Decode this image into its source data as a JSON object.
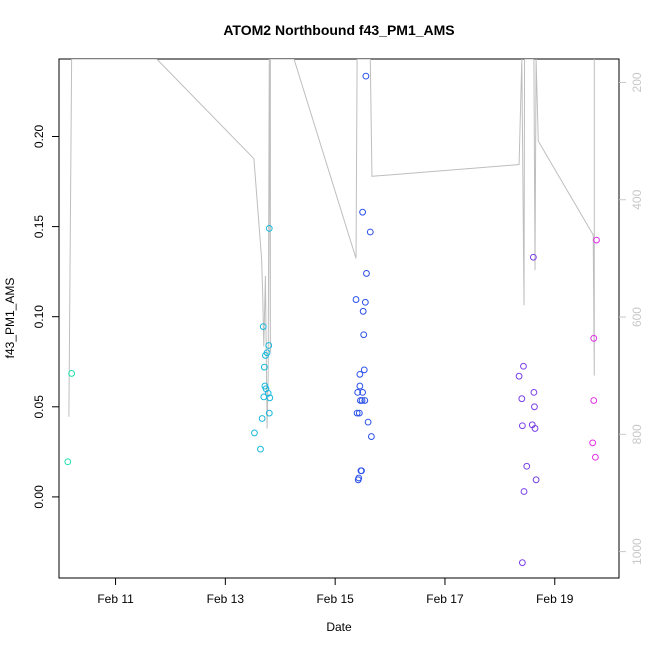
{
  "chart_data": {
    "type": "scatter",
    "title": "ATOM2 Northbound f43_PM1_AMS",
    "xlabel": "Date",
    "ylabel": "f43_PM1_AMS",
    "x_unit": "days",
    "xlim": [
      9.97,
      20.17
    ],
    "ylim": [
      -0.045,
      0.243
    ],
    "x_ticks": [
      {
        "value": 11,
        "label": "Feb 11"
      },
      {
        "value": 13,
        "label": "Feb 13"
      },
      {
        "value": 15,
        "label": "Feb 15"
      },
      {
        "value": 17,
        "label": "Feb 17"
      },
      {
        "value": 19,
        "label": "Feb 19"
      }
    ],
    "y_ticks": [
      {
        "value": 0.0,
        "label": "0.00"
      },
      {
        "value": 0.05,
        "label": "0.05"
      },
      {
        "value": 0.1,
        "label": "0.10"
      },
      {
        "value": 0.15,
        "label": "0.15"
      },
      {
        "value": 0.2,
        "label": "0.20"
      }
    ],
    "y2lim": [
      1045,
      160
    ],
    "y2_ticks": [
      {
        "value": 200,
        "label": "200"
      },
      {
        "value": 400,
        "label": "400"
      },
      {
        "value": 600,
        "label": "600"
      },
      {
        "value": 800,
        "label": "800"
      },
      {
        "value": 1000,
        "label": "1000"
      }
    ],
    "grid": false,
    "colors": {
      "line": "#bebebe",
      "axis": "#000000",
      "right_axis": "#c8c8c8"
    },
    "series": [
      {
        "kind": "points",
        "points": [
          {
            "x": 10.13,
            "y": 0.0195,
            "color": "#22e0b0"
          },
          {
            "x": 10.2,
            "y": 0.0685,
            "color": "#22e0b0"
          },
          {
            "x": 13.53,
            "y": 0.0355,
            "color": "#18b8dc"
          },
          {
            "x": 13.64,
            "y": 0.0265,
            "color": "#18b8dc"
          },
          {
            "x": 13.67,
            "y": 0.0435,
            "color": "#18b8dc"
          },
          {
            "x": 13.69,
            "y": 0.0945,
            "color": "#18b8dc"
          },
          {
            "x": 13.7,
            "y": 0.0555,
            "color": "#18b8dc"
          },
          {
            "x": 13.71,
            "y": 0.072,
            "color": "#18b8dc"
          },
          {
            "x": 13.72,
            "y": 0.0615,
            "color": "#18b8dc"
          },
          {
            "x": 13.73,
            "y": 0.0785,
            "color": "#18b8dc"
          },
          {
            "x": 13.74,
            "y": 0.06,
            "color": "#18b8dc"
          },
          {
            "x": 13.76,
            "y": 0.08,
            "color": "#18b8dc"
          },
          {
            "x": 13.78,
            "y": 0.0575,
            "color": "#18b8dc"
          },
          {
            "x": 13.79,
            "y": 0.084,
            "color": "#18b8dc"
          },
          {
            "x": 13.8,
            "y": 0.149,
            "color": "#18b8dc"
          },
          {
            "x": 13.8,
            "y": 0.0465,
            "color": "#18b8dc"
          },
          {
            "x": 13.81,
            "y": 0.055,
            "color": "#18b8dc"
          },
          {
            "x": 15.38,
            "y": 0.1095,
            "color": "#2a50e8"
          },
          {
            "x": 15.4,
            "y": 0.0465,
            "color": "#2a50e8"
          },
          {
            "x": 15.41,
            "y": 0.058,
            "color": "#2a50e8"
          },
          {
            "x": 15.42,
            "y": 0.0095,
            "color": "#2a50e8"
          },
          {
            "x": 15.43,
            "y": 0.0105,
            "color": "#2a50e8"
          },
          {
            "x": 15.44,
            "y": 0.0465,
            "color": "#2a50e8"
          },
          {
            "x": 15.45,
            "y": 0.0615,
            "color": "#2a50e8"
          },
          {
            "x": 15.45,
            "y": 0.068,
            "color": "#2a50e8"
          },
          {
            "x": 15.46,
            "y": 0.0535,
            "color": "#2a50e8"
          },
          {
            "x": 15.47,
            "y": 0.0145,
            "color": "#2a50e8"
          },
          {
            "x": 15.48,
            "y": 0.0145,
            "color": "#2a50e8"
          },
          {
            "x": 15.49,
            "y": 0.0535,
            "color": "#2a50e8"
          },
          {
            "x": 15.5,
            "y": 0.058,
            "color": "#2a50e8"
          },
          {
            "x": 15.5,
            "y": 0.158,
            "color": "#2a50e8"
          },
          {
            "x": 15.51,
            "y": 0.103,
            "color": "#2a50e8"
          },
          {
            "x": 15.52,
            "y": 0.09,
            "color": "#2a50e8"
          },
          {
            "x": 15.53,
            "y": 0.0705,
            "color": "#2a50e8"
          },
          {
            "x": 15.54,
            "y": 0.0535,
            "color": "#2a50e8"
          },
          {
            "x": 15.55,
            "y": 0.108,
            "color": "#2a50e8"
          },
          {
            "x": 15.56,
            "y": 0.2335,
            "color": "#2a50e8"
          },
          {
            "x": 15.57,
            "y": 0.124,
            "color": "#2a50e8"
          },
          {
            "x": 15.6,
            "y": 0.0415,
            "color": "#2a50e8"
          },
          {
            "x": 15.64,
            "y": 0.147,
            "color": "#2a50e8"
          },
          {
            "x": 15.66,
            "y": 0.0335,
            "color": "#2a50e8"
          },
          {
            "x": 18.35,
            "y": 0.067,
            "color": "#7a40e6"
          },
          {
            "x": 18.4,
            "y": 0.0545,
            "color": "#7a40e6"
          },
          {
            "x": 18.41,
            "y": 0.0395,
            "color": "#7a40e6"
          },
          {
            "x": 18.41,
            "y": -0.0365,
            "color": "#7a40e6"
          },
          {
            "x": 18.43,
            "y": 0.0725,
            "color": "#7a40e6"
          },
          {
            "x": 18.44,
            "y": 0.003,
            "color": "#7a40e6"
          },
          {
            "x": 18.49,
            "y": 0.017,
            "color": "#7a40e6"
          },
          {
            "x": 18.59,
            "y": 0.04,
            "color": "#7a40e6"
          },
          {
            "x": 18.61,
            "y": 0.133,
            "color": "#7a40e6"
          },
          {
            "x": 18.62,
            "y": 0.058,
            "color": "#7a40e6"
          },
          {
            "x": 18.63,
            "y": 0.05,
            "color": "#7a40e6"
          },
          {
            "x": 18.64,
            "y": 0.038,
            "color": "#7a40e6"
          },
          {
            "x": 18.66,
            "y": 0.0095,
            "color": "#7a40e6"
          },
          {
            "x": 19.69,
            "y": 0.03,
            "color": "#e030e6"
          },
          {
            "x": 19.71,
            "y": 0.088,
            "color": "#e030e6"
          },
          {
            "x": 19.71,
            "y": 0.0535,
            "color": "#e030e6"
          },
          {
            "x": 19.74,
            "y": 0.022,
            "color": "#e030e6"
          },
          {
            "x": 19.76,
            "y": 0.1425,
            "color": "#e030e6"
          }
        ]
      },
      {
        "kind": "line",
        "axis": "right",
        "path": [
          [
            10.15,
            770
          ],
          [
            10.2,
            160
          ],
          [
            11.75,
            160
          ],
          [
            13.52,
            330
          ],
          [
            13.66,
            500
          ],
          [
            13.68,
            560
          ],
          [
            13.7,
            650
          ],
          [
            13.73,
            530
          ],
          [
            13.76,
            790
          ],
          [
            13.78,
            700
          ],
          [
            13.8,
            160
          ],
          [
            13.82,
            660
          ],
          [
            13.82,
            160
          ],
          [
            14.25,
            160
          ],
          [
            15.38,
            500
          ],
          [
            15.4,
            160
          ],
          [
            15.42,
            160
          ],
          [
            15.45,
            160
          ],
          [
            15.47,
            160
          ],
          [
            15.5,
            160
          ],
          [
            15.52,
            160
          ],
          [
            15.55,
            160
          ],
          [
            15.58,
            160
          ],
          [
            15.61,
            160
          ],
          [
            15.64,
            160
          ],
          [
            15.67,
            360
          ],
          [
            18.35,
            340
          ],
          [
            18.4,
            160
          ],
          [
            18.44,
            580
          ],
          [
            18.45,
            160
          ],
          [
            18.62,
            160
          ],
          [
            18.64,
            520
          ],
          [
            18.66,
            160
          ],
          [
            18.7,
            300
          ],
          [
            19.7,
            460
          ],
          [
            19.72,
            700
          ],
          [
            19.72,
            160
          ]
        ]
      }
    ]
  }
}
